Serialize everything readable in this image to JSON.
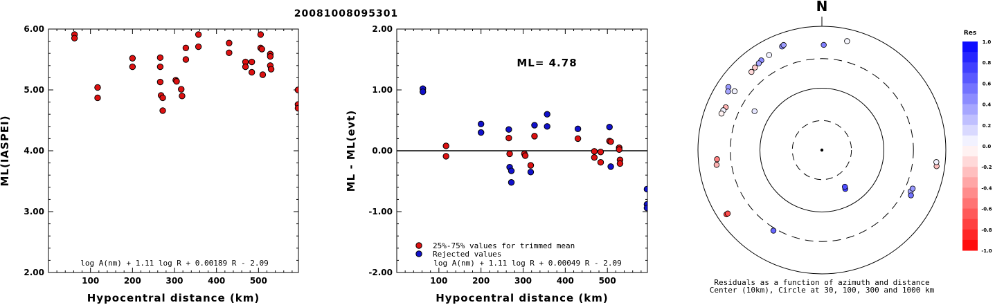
{
  "figure_title": "20081008095301",
  "chart_data": [
    {
      "type": "scatter",
      "panel": "left",
      "xlabel": "Hypocentral distance (km)",
      "ylabel": "ML(IASPEI)",
      "xlim": [
        0,
        595
      ],
      "ylim": [
        2.0,
        6.0
      ],
      "xticks": [
        {
          "v": 100,
          "label": "100"
        },
        {
          "v": 200,
          "label": "200"
        },
        {
          "v": 300,
          "label": "300"
        },
        {
          "v": 400,
          "label": "400"
        },
        {
          "v": 500,
          "label": "500"
        }
      ],
      "yticks": [
        {
          "v": 2.0,
          "label": "2.00"
        },
        {
          "v": 3.0,
          "label": "3.00"
        },
        {
          "v": 4.0,
          "label": "4.00"
        },
        {
          "v": 5.0,
          "label": "5.00"
        },
        {
          "v": 6.0,
          "label": "6.00"
        }
      ],
      "annotation": "log A(nm) + 1.11 log R + 0.00189 R - 2.09",
      "marker_color": "#dd1111",
      "points": [
        [
          62,
          5.91
        ],
        [
          62,
          5.85
        ],
        [
          117,
          5.04
        ],
        [
          117,
          4.87
        ],
        [
          200,
          5.52
        ],
        [
          200,
          5.38
        ],
        [
          266,
          5.53
        ],
        [
          266,
          5.38
        ],
        [
          266,
          5.13
        ],
        [
          268,
          4.91
        ],
        [
          272,
          4.87
        ],
        [
          272,
          4.66
        ],
        [
          303,
          5.16
        ],
        [
          305,
          5.14
        ],
        [
          316,
          5.01
        ],
        [
          318,
          4.9
        ],
        [
          327,
          5.69
        ],
        [
          327,
          5.5
        ],
        [
          357,
          5.91
        ],
        [
          357,
          5.71
        ],
        [
          430,
          5.77
        ],
        [
          430,
          5.61
        ],
        [
          469,
          5.46
        ],
        [
          469,
          5.38
        ],
        [
          484,
          5.46
        ],
        [
          484,
          5.29
        ],
        [
          505,
          5.91
        ],
        [
          505,
          5.69
        ],
        [
          508,
          5.67
        ],
        [
          510,
          5.25
        ],
        [
          528,
          5.59
        ],
        [
          528,
          5.55
        ],
        [
          528,
          5.4
        ],
        [
          530,
          5.34
        ],
        [
          594,
          5.0
        ],
        [
          594,
          4.76
        ],
        [
          594,
          4.7
        ]
      ]
    },
    {
      "type": "scatter",
      "panel": "middle",
      "xlabel": "Hypocentral distance (km)",
      "ylabel": "ML - ML(evt)",
      "xlim": [
        0,
        595
      ],
      "ylim": [
        -2.0,
        2.0
      ],
      "xticks": [
        {
          "v": 100,
          "label": "100"
        },
        {
          "v": 200,
          "label": "200"
        },
        {
          "v": 300,
          "label": "300"
        },
        {
          "v": 400,
          "label": "400"
        },
        {
          "v": 500,
          "label": "500"
        }
      ],
      "yticks": [
        {
          "v": -2.0,
          "label": "-2.00"
        },
        {
          "v": -1.0,
          "label": "-1.00"
        },
        {
          "v": 0.0,
          "label": "0.00"
        },
        {
          "v": 1.0,
          "label": "1.00"
        },
        {
          "v": 2.0,
          "label": "2.00"
        }
      ],
      "ml_label": "ML= 4.78",
      "annotation": "log A(nm) + 1.11 log R + 0.00049 R - 2.09",
      "legend": [
        {
          "label": "25%-75% values for trimmed mean",
          "color": "#dd1111"
        },
        {
          "label": "Rejected values",
          "color": "#1111cc"
        }
      ],
      "series": [
        {
          "name": "25%-75% values for trimmed mean",
          "color": "#dd1111",
          "points": [
            [
              117,
              0.08
            ],
            [
              117,
              -0.09
            ],
            [
              266,
              0.21
            ],
            [
              268,
              -0.05
            ],
            [
              303,
              -0.05
            ],
            [
              305,
              -0.08
            ],
            [
              318,
              -0.24
            ],
            [
              327,
              0.24
            ],
            [
              430,
              0.2
            ],
            [
              469,
              -0.01
            ],
            [
              469,
              -0.11
            ],
            [
              484,
              -0.02
            ],
            [
              484,
              -0.19
            ],
            [
              505,
              0.16
            ],
            [
              508,
              0.15
            ],
            [
              528,
              0.05
            ],
            [
              528,
              0.02
            ],
            [
              530,
              -0.15
            ],
            [
              530,
              -0.21
            ]
          ]
        },
        {
          "name": "Rejected values",
          "color": "#1111cc",
          "points": [
            [
              62,
              1.02
            ],
            [
              62,
              0.97
            ],
            [
              200,
              0.44
            ],
            [
              200,
              0.3
            ],
            [
              266,
              0.35
            ],
            [
              268,
              -0.27
            ],
            [
              272,
              -0.33
            ],
            [
              272,
              -0.52
            ],
            [
              318,
              -0.35
            ],
            [
              327,
              0.42
            ],
            [
              357,
              0.6
            ],
            [
              357,
              0.4
            ],
            [
              430,
              0.36
            ],
            [
              505,
              0.39
            ],
            [
              508,
              -0.26
            ],
            [
              594,
              -0.63
            ],
            [
              594,
              -0.88
            ],
            [
              594,
              -0.94
            ]
          ]
        }
      ]
    },
    {
      "type": "scatter",
      "panel": "right",
      "subtype": "polar residual map",
      "north_label": "N",
      "caption_line1": "Residuals as a function of azimuth and distance",
      "caption_line2": "Center (10km), Circle at 30, 100, 300 and 1000 km",
      "colorbar": {
        "title": "Res",
        "ticks": [
          {
            "v": 1.0,
            "label": "1.0"
          },
          {
            "v": 0.8,
            "label": "0.8"
          },
          {
            "v": 0.6,
            "label": "0.6"
          },
          {
            "v": 0.4,
            "label": "0.4"
          },
          {
            "v": 0.2,
            "label": "0.2"
          },
          {
            "v": 0.0,
            "label": "0.0"
          },
          {
            "v": -0.2,
            "label": "-0.2"
          },
          {
            "v": -0.4,
            "label": "-0.4"
          },
          {
            "v": -0.6,
            "label": "-0.6"
          },
          {
            "v": -0.8,
            "label": "-0.8"
          },
          {
            "v": -1.0,
            "label": "-1.0"
          }
        ]
      },
      "points": [
        {
          "az": 1,
          "dist": 500,
          "res": 0.5
        },
        {
          "az": 13,
          "dist": 640,
          "res": 0.03
        },
        {
          "az": 331,
          "dist": 570,
          "res": 0.05
        },
        {
          "az": 339,
          "dist": 620,
          "res": 0.45
        },
        {
          "az": 340,
          "dist": 640,
          "res": 0.38
        },
        {
          "az": 326,
          "dist": 560,
          "res": 0.45
        },
        {
          "az": 324,
          "dist": 540,
          "res": 0.35
        },
        {
          "az": 321,
          "dist": 520,
          "res": -0.2
        },
        {
          "az": 318,
          "dist": 500,
          "res": -0.15
        },
        {
          "az": 304,
          "dist": 660,
          "res": 0.4
        },
        {
          "az": 302,
          "dist": 610,
          "res": 0.35
        },
        {
          "az": 304,
          "dist": 500,
          "res": 0.05
        },
        {
          "az": 294,
          "dist": 500,
          "res": -0.3
        },
        {
          "az": 292,
          "dist": 520,
          "res": 0.05
        },
        {
          "az": 290,
          "dist": 530,
          "res": -0.05
        },
        {
          "az": 300,
          "dist": 180,
          "res": 0.1
        },
        {
          "az": 265,
          "dist": 500,
          "res": -0.5
        },
        {
          "az": 262,
          "dist": 520,
          "res": -0.3
        },
        {
          "az": 236,
          "dist": 720,
          "res": -0.8
        },
        {
          "az": 236,
          "dist": 680,
          "res": -0.7
        },
        {
          "az": 211,
          "dist": 330,
          "res": 0.6
        },
        {
          "az": 149,
          "dist": 54,
          "res": 0.75
        },
        {
          "az": 148,
          "dist": 50,
          "res": 0.7
        },
        {
          "az": 115,
          "dist": 380,
          "res": 0.35
        },
        {
          "az": 113,
          "dist": 390,
          "res": 0.4
        },
        {
          "az": 117,
          "dist": 410,
          "res": 0.55
        },
        {
          "az": 98,
          "dist": 740,
          "res": -0.25
        },
        {
          "az": 96,
          "dist": 720,
          "res": 0.05
        }
      ]
    }
  ]
}
